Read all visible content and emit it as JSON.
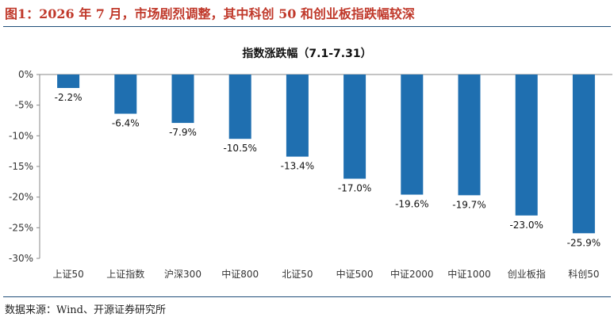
{
  "figure_title": "图1：2026 年 7 月，市场剧烈调整，其中科创 50 和创业板指跌幅较深",
  "source": "数据来源：Wind、开源证券研究所",
  "colors": {
    "bar": "#1f6fb0",
    "title": "#c0392b",
    "rule": "#1f4e79"
  },
  "chart_data": {
    "type": "bar",
    "title": "指数涨跌幅（7.1-7.31）",
    "xlabel": "",
    "ylabel": "",
    "categories": [
      "上证50",
      "上证指数",
      "沪深300",
      "中证800",
      "北证50",
      "中证500",
      "中证2000",
      "中证1000",
      "创业板指",
      "科创50"
    ],
    "values": [
      -2.2,
      -6.4,
      -7.9,
      -10.5,
      -13.4,
      -17.0,
      -19.6,
      -19.7,
      -23.0,
      -25.9
    ],
    "value_labels": [
      "-2.2%",
      "-6.4%",
      "-7.9%",
      "-10.5%",
      "-13.4%",
      "-17.0%",
      "-19.6%",
      "-19.7%",
      "-23.0%",
      "-25.9%"
    ],
    "yticks": [
      "0%",
      "-5%",
      "-10%",
      "-15%",
      "-20%",
      "-25%",
      "-30%"
    ],
    "ylim": [
      -30,
      0
    ],
    "grid": false,
    "legend": "none"
  }
}
